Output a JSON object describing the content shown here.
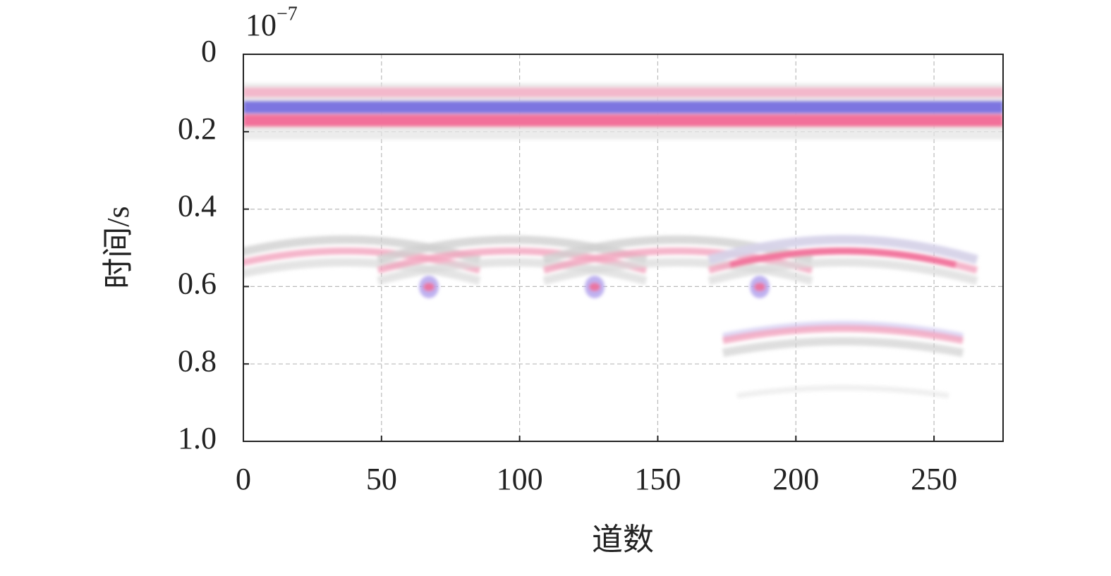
{
  "chart_data": {
    "type": "radargram",
    "x_label": "道数",
    "y_label": "时间/s",
    "y_scale_base": "10",
    "y_scale_exponent": "−7",
    "xlim": [
      0,
      275
    ],
    "xticks": [
      0,
      50,
      100,
      150,
      200,
      250
    ],
    "ylim": [
      0,
      1
    ],
    "yticks": [
      0,
      0.2,
      0.4,
      0.6,
      0.8,
      {
        "value": 1,
        "label": "1.0"
      }
    ],
    "y_inverted": true,
    "grid": true
  }
}
